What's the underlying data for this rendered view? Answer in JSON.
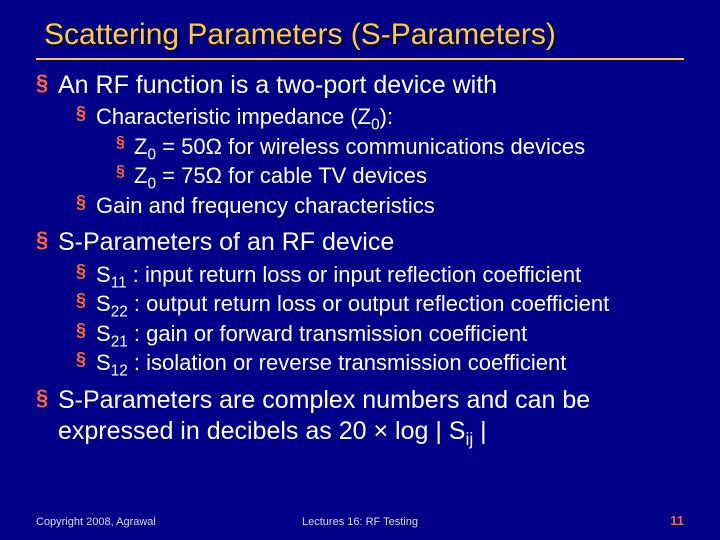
{
  "colors": {
    "background": "#000088",
    "title": "#ffcc33",
    "bullet": "#ff6633",
    "text": "#ffffff",
    "footer_text": "#dddddd",
    "page_number": "#ff6633"
  },
  "typography": {
    "title_fontsize": 30,
    "l1_fontsize": 25,
    "l2_fontsize": 22,
    "l3_fontsize": 22,
    "footer_fontsize": 11
  },
  "title": "Scattering Parameters (S-Parameters)",
  "bullets": [
    {
      "level": 1,
      "html": "An RF function is a two-port device with"
    },
    {
      "level": 2,
      "html": "Characteristic impedance (Z<sub>0</sub>):"
    },
    {
      "level": 3,
      "html": "Z<sub>0</sub> = 50Ω for wireless communications devices"
    },
    {
      "level": 3,
      "html": "Z<sub>0</sub> = 75Ω for cable TV devices"
    },
    {
      "level": 2,
      "html": "Gain and frequency characteristics"
    },
    {
      "level": 0,
      "gap": true
    },
    {
      "level": 1,
      "html": "S-Parameters of an RF device"
    },
    {
      "level": 2,
      "html": "S<sub>11</sub> : input return loss or input reflection coefficient"
    },
    {
      "level": 2,
      "html": "S<sub>22</sub> : output return loss or output reflection coefficient"
    },
    {
      "level": 2,
      "html": "S<sub>21</sub> : gain or forward transmission coefficient"
    },
    {
      "level": 2,
      "html": "S<sub>12</sub>  : isolation or reverse transmission coefficient"
    },
    {
      "level": 0,
      "gap": true
    },
    {
      "level": 1,
      "html": "S-Parameters are complex numbers and can be expressed in decibels as 20 × log | S<sub>ij</sub> |"
    }
  ],
  "footer": {
    "left": "Copyright 2008, Agrawal",
    "center": "Lectures 16: RF Testing",
    "page_number": "11"
  }
}
